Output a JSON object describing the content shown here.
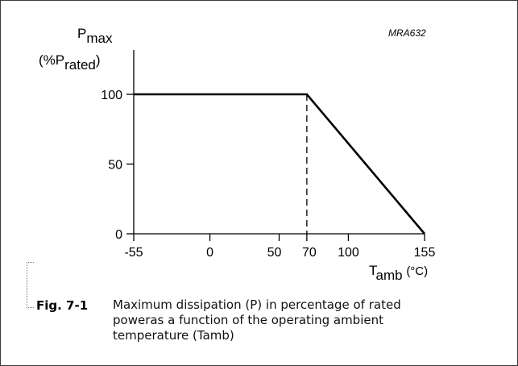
{
  "chart_data": {
    "type": "line",
    "code": "MRA632",
    "ylabel": {
      "main": "P",
      "sub": "max",
      "line2_prefix": "(%P",
      "line2_sub": "rated",
      "line2_suffix": ")"
    },
    "xlabel": {
      "main": "T",
      "sub": "amb",
      "unit": "(°C)"
    },
    "xlim": [
      -55,
      155
    ],
    "ylim": [
      0,
      100
    ],
    "x_ticks": [
      {
        "value": -55,
        "label": "-55"
      },
      {
        "value": 0,
        "label": "0"
      },
      {
        "value": 50,
        "label": "50"
      },
      {
        "value": 70,
        "label": "70"
      },
      {
        "value": 100,
        "label": "100"
      },
      {
        "value": 155,
        "label": "155"
      }
    ],
    "y_ticks": [
      {
        "value": 0,
        "label": "0"
      },
      {
        "value": 50,
        "label": "50"
      },
      {
        "value": 100,
        "label": "100"
      }
    ],
    "series": [
      {
        "x": [
          -55,
          70,
          155
        ],
        "y": [
          100,
          100,
          0
        ]
      }
    ],
    "reference_lines": [
      {
        "style": "dashed",
        "x": 70,
        "y_from": 0,
        "y_to": 100
      }
    ],
    "grid": false
  },
  "figure": {
    "number": "Fig. 7-1",
    "caption": "Maximum dissipation (P) in percentage of rated poweras a function of the operating ambient temperature (Tamb)"
  }
}
